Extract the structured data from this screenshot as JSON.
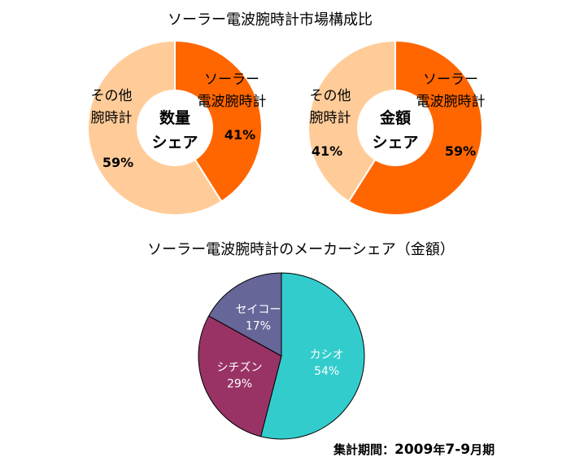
{
  "chart_data": [
    {
      "type": "pie",
      "variant": "donut",
      "title": "ソーラー電波腕時計市場構成比",
      "center_label": [
        "数量",
        "シェア"
      ],
      "slices": [
        {
          "name": "ソーラー電波腕時計",
          "name_lines": [
            "ソーラー",
            "電波腕時計"
          ],
          "value": 41,
          "label": "41%",
          "color": "#ff6600"
        },
        {
          "name": "その他腕時計",
          "name_lines": [
            "その他",
            "腕時計"
          ],
          "value": 59,
          "label": "59%",
          "color": "#ffcc99"
        }
      ]
    },
    {
      "type": "pie",
      "variant": "donut",
      "center_label": [
        "金額",
        "シェア"
      ],
      "slices": [
        {
          "name": "ソーラー電波腕時計",
          "name_lines": [
            "ソーラー",
            "電波腕時計"
          ],
          "value": 59,
          "label": "59%",
          "color": "#ff6600"
        },
        {
          "name": "その他腕時計",
          "name_lines": [
            "その他",
            "腕時計"
          ],
          "value": 41,
          "label": "41%",
          "color": "#ffcc99"
        }
      ]
    },
    {
      "type": "pie",
      "title": "ソーラー電波腕時計のメーカーシェア（金額）",
      "slices": [
        {
          "name": "カシオ",
          "value": 54,
          "label": "54%",
          "color": "#33cccc"
        },
        {
          "name": "シチズン",
          "value": 29,
          "label": "29%",
          "color": "#993366"
        },
        {
          "name": "セイコー",
          "value": 17,
          "label": "17%",
          "color": "#666699"
        }
      ]
    }
  ],
  "footer": {
    "prefix": "集計期間：",
    "year": "2009",
    "year_unit": "年",
    "months": "7-9",
    "month_unit": "月期"
  }
}
